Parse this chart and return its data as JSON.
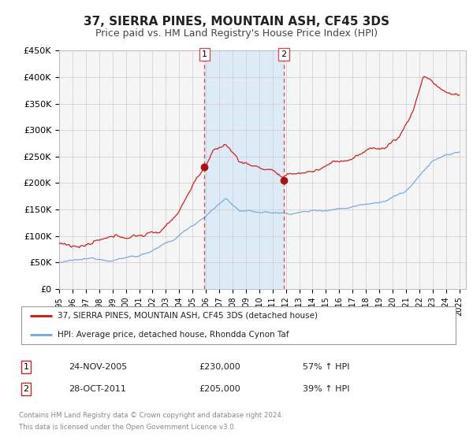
{
  "title": "37, SIERRA PINES, MOUNTAIN ASH, CF45 3DS",
  "subtitle": "Price paid vs. HM Land Registry's House Price Index (HPI)",
  "ylim": [
    0,
    450000
  ],
  "yticks": [
    0,
    50000,
    100000,
    150000,
    200000,
    250000,
    300000,
    350000,
    400000,
    450000
  ],
  "ytick_labels": [
    "£0",
    "£50K",
    "£100K",
    "£150K",
    "£200K",
    "£250K",
    "£300K",
    "£350K",
    "£400K",
    "£450K"
  ],
  "xlim_start": 1995.0,
  "xlim_end": 2025.5,
  "hpi_color": "#7aacdc",
  "price_color": "#cc2222",
  "sale1_x": 2005.9,
  "sale1_y": 230000,
  "sale2_x": 2011.83,
  "sale2_y": 205000,
  "shade_color": "#ddeaf7",
  "vline_color": "#dd4444",
  "legend_label1": "37, SIERRA PINES, MOUNTAIN ASH, CF45 3DS (detached house)",
  "legend_label2": "HPI: Average price, detached house, Rhondda Cynon Taf",
  "table_row1_num": "1",
  "table_row1_date": "24-NOV-2005",
  "table_row1_price": "£230,000",
  "table_row1_hpi": "57% ↑ HPI",
  "table_row2_num": "2",
  "table_row2_date": "28-OCT-2011",
  "table_row2_price": "£205,000",
  "table_row2_hpi": "39% ↑ HPI",
  "footnote1": "Contains HM Land Registry data © Crown copyright and database right 2024.",
  "footnote2": "This data is licensed under the Open Government Licence v3.0.",
  "background_color": "#ffffff",
  "plot_bg_color": "#f5f5f5",
  "grid_color": "#cccccc",
  "title_fontsize": 11,
  "subtitle_fontsize": 9
}
